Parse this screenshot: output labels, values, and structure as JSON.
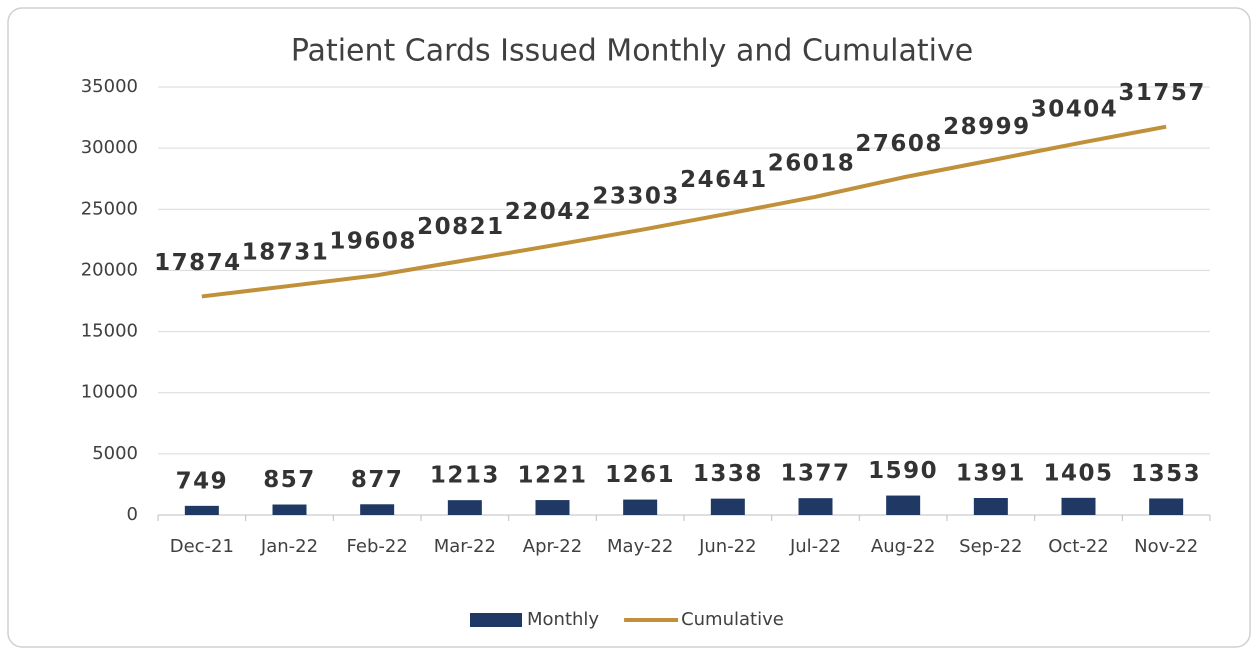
{
  "chart_data": {
    "type": "combo",
    "title": "Patient Cards Issued Monthly and Cumulative",
    "categories": [
      "Dec-21",
      "Jan-22",
      "Feb-22",
      "Mar-22",
      "Apr-22",
      "May-22",
      "Jun-22",
      "Jul-22",
      "Aug-22",
      "Sep-22",
      "Oct-22",
      "Nov-22"
    ],
    "series": [
      {
        "name": "Monthly",
        "type": "bar",
        "color": "#1f3864",
        "values": [
          749,
          857,
          877,
          1213,
          1221,
          1261,
          1338,
          1377,
          1590,
          1391,
          1405,
          1353
        ]
      },
      {
        "name": "Cumulative",
        "type": "line",
        "color": "#c0913a",
        "values": [
          17874,
          18731,
          19608,
          20821,
          22042,
          23303,
          24641,
          26018,
          27608,
          28999,
          30404,
          31757
        ]
      }
    ],
    "ylim": [
      0,
      35000
    ],
    "yticks": [
      0,
      5000,
      10000,
      15000,
      20000,
      25000,
      30000,
      35000
    ],
    "grid": true,
    "legend": "bottom"
  }
}
